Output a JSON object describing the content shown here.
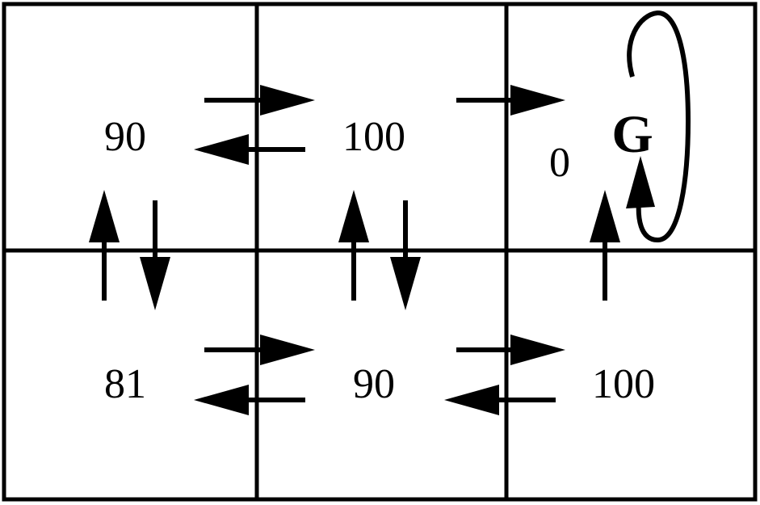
{
  "grid": {
    "rows": 2,
    "cols": 3,
    "cells": [
      {
        "id": "r1c1",
        "value": "90"
      },
      {
        "id": "r1c2",
        "value": "100"
      },
      {
        "id": "r1c3",
        "value": "0"
      },
      {
        "id": "r2c1",
        "value": "81"
      },
      {
        "id": "r2c2",
        "value": "90"
      },
      {
        "id": "r2c3",
        "value": "100"
      }
    ],
    "goal": {
      "cell": "r1c3",
      "label": "G",
      "self_loop": true
    }
  },
  "transitions": [
    {
      "from": "r1c1",
      "to": "r1c2"
    },
    {
      "from": "r1c2",
      "to": "r1c1"
    },
    {
      "from": "r1c2",
      "to": "r1c3"
    },
    {
      "from": "r1c1",
      "to": "r2c1"
    },
    {
      "from": "r2c1",
      "to": "r1c1"
    },
    {
      "from": "r1c2",
      "to": "r2c2"
    },
    {
      "from": "r2c2",
      "to": "r1c2"
    },
    {
      "from": "r2c3",
      "to": "r1c3"
    },
    {
      "from": "r2c1",
      "to": "r2c2"
    },
    {
      "from": "r2c2",
      "to": "r2c1"
    },
    {
      "from": "r2c2",
      "to": "r2c3"
    },
    {
      "from": "r2c3",
      "to": "r2c2"
    },
    {
      "from": "r1c3",
      "to": "r1c3"
    }
  ]
}
